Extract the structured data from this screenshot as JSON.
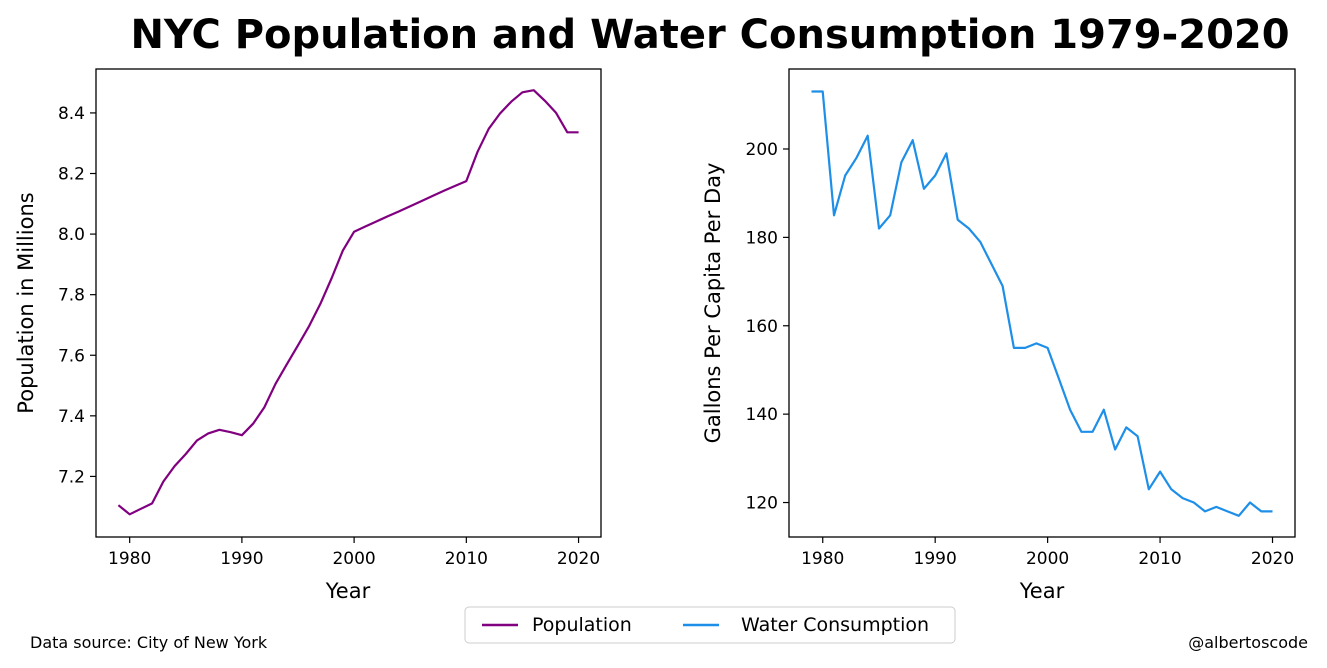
{
  "title": "NYC Population and Water Consumption 1979-2020",
  "footer": {
    "source": "Data source: City of New York",
    "credit": "@albertoscode"
  },
  "legend": {
    "placement": "bottom-center",
    "items": [
      {
        "label": "Population",
        "color": "#800080"
      },
      {
        "label": "Water Consumption",
        "color": "#1e8fe8"
      }
    ]
  },
  "chart_data": [
    {
      "type": "line",
      "xlabel": "Year",
      "ylabel": "Population in Millions",
      "xlim": [
        1977,
        2022
      ],
      "ylim": [
        7.0,
        8.545
      ],
      "xticks": [
        1980,
        1990,
        2000,
        2010,
        2020
      ],
      "yticks": [
        7.2,
        7.4,
        7.6,
        7.8,
        8.0,
        8.2,
        8.4
      ],
      "ytick_labels": [
        "7.2",
        "7.4",
        "7.6",
        "7.8",
        "8.0",
        "8.2",
        "8.4"
      ],
      "grid": false,
      "series": [
        {
          "name": "Population",
          "color": "#800080",
          "x": [
            1979,
            1980,
            1981,
            1982,
            1983,
            1984,
            1985,
            1986,
            1987,
            1988,
            1989,
            1990,
            1991,
            1992,
            1993,
            1994,
            1995,
            1996,
            1997,
            1998,
            1999,
            2000,
            2001,
            2002,
            2003,
            2004,
            2005,
            2006,
            2007,
            2008,
            2009,
            2010,
            2011,
            2012,
            2013,
            2014,
            2015,
            2016,
            2017,
            2018,
            2019,
            2020
          ],
          "y": [
            7.105,
            7.075,
            7.093,
            7.111,
            7.183,
            7.234,
            7.274,
            7.319,
            7.342,
            7.354,
            7.346,
            7.336,
            7.374,
            7.428,
            7.506,
            7.57,
            7.633,
            7.697,
            7.77,
            7.855,
            7.946,
            8.008,
            8.025,
            8.042,
            8.059,
            8.075,
            8.092,
            8.109,
            8.126,
            8.143,
            8.159,
            8.175,
            8.272,
            8.348,
            8.398,
            8.437,
            8.468,
            8.475,
            8.44,
            8.4,
            8.336,
            8.336
          ]
        }
      ]
    },
    {
      "type": "line",
      "xlabel": "Year",
      "ylabel": "Gallons Per Capita Per Day",
      "xlim": [
        1977,
        2022
      ],
      "ylim": [
        112.2,
        218.1
      ],
      "xticks": [
        1980,
        1990,
        2000,
        2010,
        2020
      ],
      "yticks": [
        120,
        140,
        160,
        180,
        200
      ],
      "ytick_labels": [
        "120",
        "140",
        "160",
        "180",
        "200"
      ],
      "grid": false,
      "series": [
        {
          "name": "Water Consumption",
          "color": "#1e8fe8",
          "x": [
            1979,
            1980,
            1981,
            1982,
            1983,
            1984,
            1985,
            1986,
            1987,
            1988,
            1989,
            1990,
            1991,
            1992,
            1993,
            1994,
            1995,
            1996,
            1997,
            1998,
            1999,
            2000,
            2001,
            2002,
            2003,
            2004,
            2005,
            2006,
            2007,
            2008,
            2009,
            2010,
            2011,
            2012,
            2013,
            2014,
            2015,
            2016,
            2017,
            2018,
            2019,
            2020
          ],
          "y": [
            213,
            213,
            185,
            194,
            198,
            203,
            182,
            185,
            197,
            202,
            191,
            194,
            199,
            184,
            182,
            179,
            174,
            169,
            155,
            155,
            156,
            155,
            148,
            141,
            136,
            136,
            141,
            132,
            137,
            135,
            123,
            127,
            123,
            121,
            120,
            118,
            119,
            118,
            117,
            120,
            118,
            118
          ]
        }
      ]
    }
  ]
}
